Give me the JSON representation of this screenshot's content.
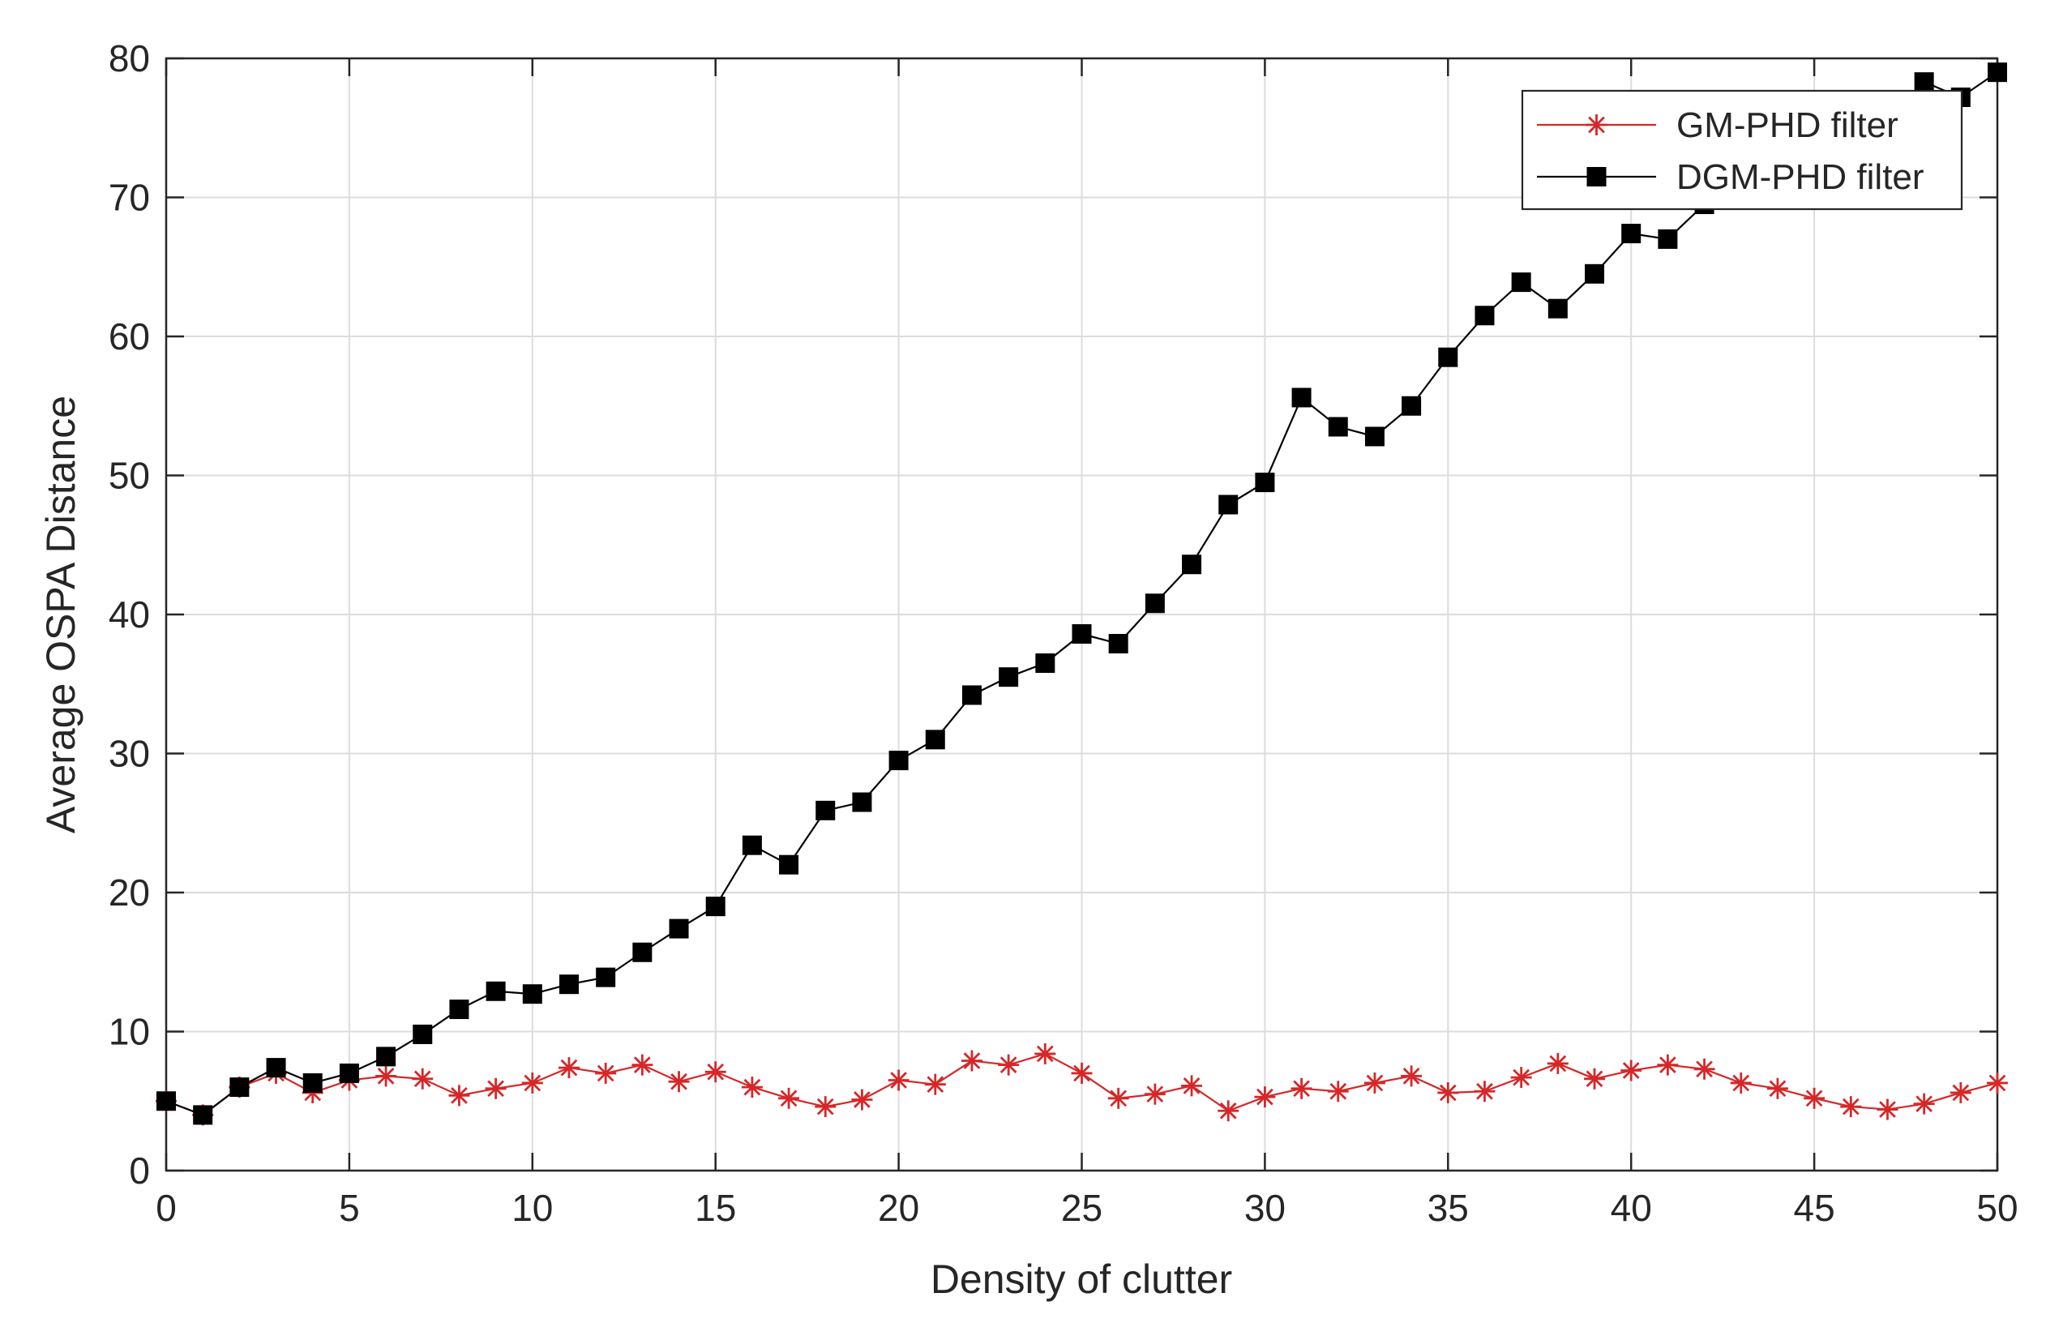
{
  "chart_data": {
    "type": "line",
    "title": "",
    "xlabel": "Density of clutter",
    "ylabel": "Average OSPA Distance",
    "xlim": [
      0,
      50
    ],
    "ylim": [
      0,
      80
    ],
    "xticks": [
      0,
      5,
      10,
      15,
      20,
      25,
      30,
      35,
      40,
      45,
      50
    ],
    "yticks": [
      0,
      10,
      20,
      30,
      40,
      50,
      60,
      70,
      80
    ],
    "grid": true,
    "legend_position": "top-right",
    "x": [
      0,
      1,
      2,
      3,
      4,
      5,
      6,
      7,
      8,
      9,
      10,
      11,
      12,
      13,
      14,
      15,
      16,
      17,
      18,
      19,
      20,
      21,
      22,
      23,
      24,
      25,
      26,
      27,
      28,
      29,
      30,
      31,
      32,
      33,
      34,
      35,
      36,
      37,
      38,
      39,
      40,
      41,
      42,
      43,
      44,
      45,
      46,
      47,
      48,
      49,
      50
    ],
    "series": [
      {
        "name": "GM-PHD filter",
        "color": "#d62728",
        "marker": "asterisk",
        "values": [
          5.0,
          4.0,
          6.0,
          7.0,
          5.6,
          6.5,
          6.8,
          6.6,
          5.4,
          5.9,
          6.3,
          7.4,
          7.0,
          7.6,
          6.4,
          7.1,
          6.0,
          5.2,
          4.6,
          5.1,
          6.5,
          6.2,
          7.9,
          7.6,
          8.4,
          7.0,
          5.2,
          5.5,
          6.1,
          4.3,
          5.3,
          5.9,
          5.7,
          6.3,
          6.8,
          5.6,
          5.7,
          6.7,
          7.7,
          6.6,
          7.2,
          7.6,
          7.3,
          6.3,
          5.9,
          5.2,
          4.6,
          4.4,
          4.8,
          5.6,
          6.3
        ]
      },
      {
        "name": "DGM-PHD filter",
        "color": "#000000",
        "marker": "square",
        "values": [
          5.0,
          4.0,
          6.0,
          7.4,
          6.3,
          7.0,
          8.2,
          9.8,
          11.6,
          12.9,
          12.7,
          13.4,
          13.9,
          15.7,
          17.4,
          19.0,
          23.4,
          22.0,
          25.9,
          26.5,
          29.5,
          31.0,
          34.2,
          35.5,
          36.5,
          38.6,
          37.9,
          40.8,
          43.6,
          47.9,
          49.5,
          55.6,
          53.5,
          52.8,
          55.0,
          58.5,
          61.5,
          63.9,
          62.0,
          64.5,
          67.4,
          67.0,
          69.5,
          70.2,
          71.0,
          72.0,
          73.5,
          75.5,
          78.3,
          77.2,
          79.0
        ]
      }
    ]
  }
}
